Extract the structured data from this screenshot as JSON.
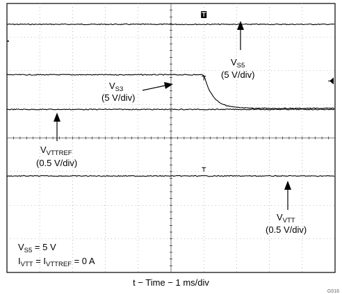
{
  "chart_data": {
    "type": "line",
    "title": "",
    "xlabel": "t − Time − 1 ms/div",
    "ylabel": "",
    "grid": true,
    "x_divisions": 10,
    "y_divisions": 8,
    "time_per_div_ms": 1,
    "xlim_ms": [
      0,
      10
    ],
    "trigger_time_ms": 6,
    "series": [
      {
        "name": "V_S5",
        "sub": "S5",
        "scale": "(5 V/div)",
        "level_div": 7.38,
        "behavior": "flat"
      },
      {
        "name": "V_S3",
        "sub": "S3",
        "scale": "(5 V/div)",
        "level_div": 5.88,
        "final_level_div": 4.88,
        "transition_ms": 6.0,
        "decay_tau_ms": 0.28,
        "behavior": "step-down"
      },
      {
        "name": "V_VTTREF",
        "sub": "VTTREF",
        "scale": "(0.5 V/div)",
        "level_div": 4.85,
        "behavior": "flat"
      },
      {
        "name": "V_VTT",
        "sub": "VTT",
        "scale": "(0.5 V/div)",
        "level_div": 2.87,
        "behavior": "flat"
      }
    ],
    "conditions": [
      {
        "main": "V",
        "sub": "S5",
        "tail": " = 5 V"
      },
      {
        "main": "I",
        "sub": "VTT",
        "mid": " = I",
        "sub2": "VTTREF",
        "tail": " = 0 A"
      }
    ],
    "figure_code": "G016"
  }
}
